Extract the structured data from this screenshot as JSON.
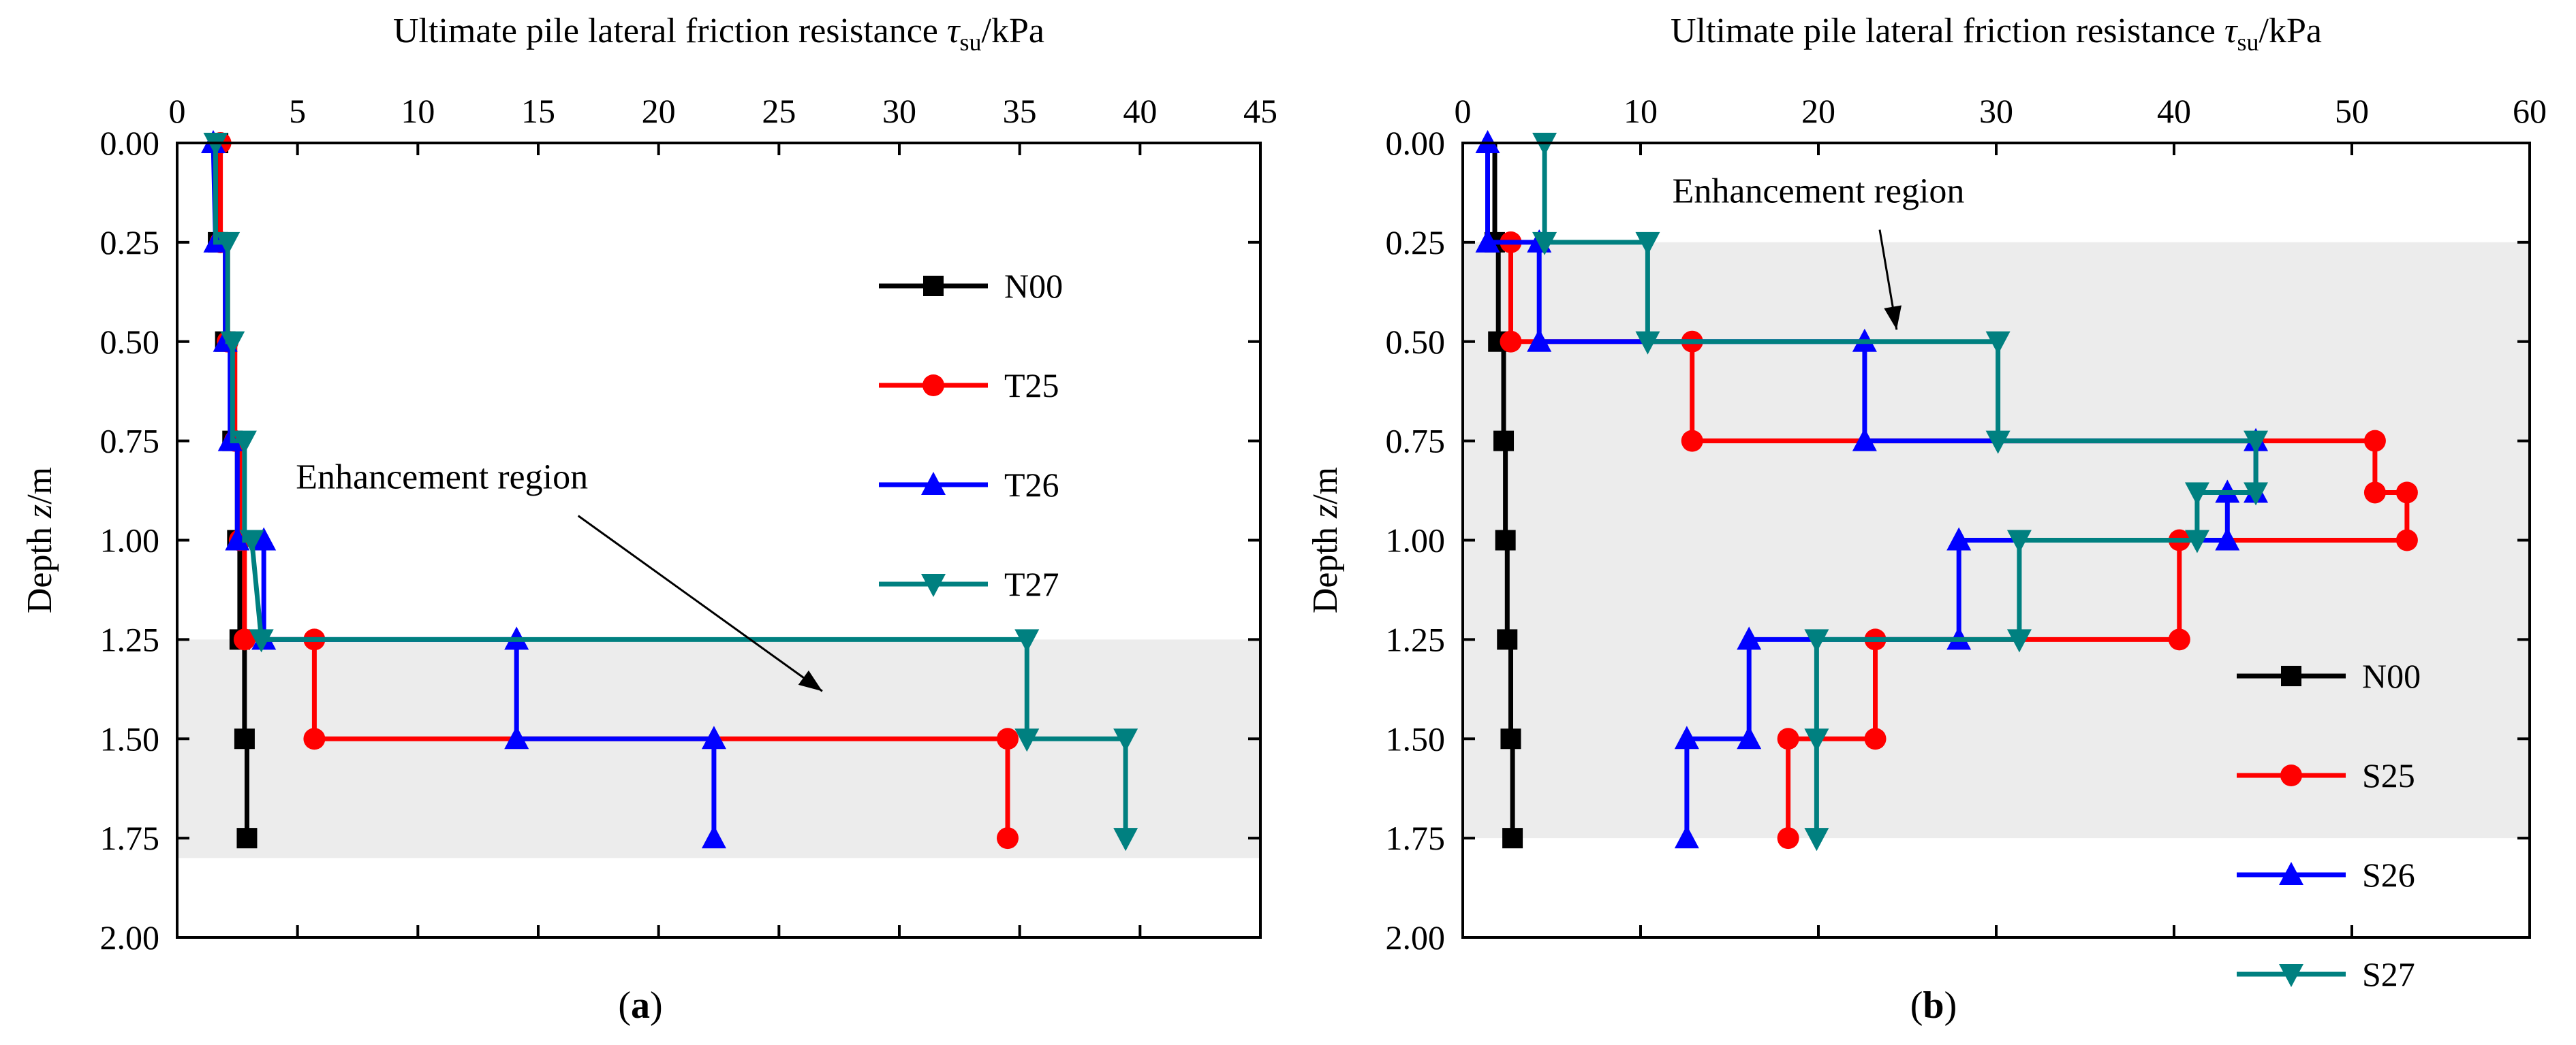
{
  "chart_data": [
    {
      "type": "line",
      "panel": "a",
      "caption": "a",
      "title": "",
      "xlabel": "Ultimate pile lateral friction resistance",
      "xlabel_symbol": "τ",
      "xlabel_sub": "su",
      "xlabel_unit": "/kPa",
      "ylabel": "Depth",
      "ylabel_symbol": "z",
      "ylabel_unit": "/m",
      "xlim": [
        0,
        45
      ],
      "ylim": [
        0,
        2.0
      ],
      "x_ticks": [
        0,
        5,
        10,
        15,
        20,
        25,
        30,
        35,
        40,
        45
      ],
      "y_ticks": [
        "0.00",
        "0.25",
        "0.50",
        "0.75",
        "1.00",
        "1.25",
        "1.50",
        "1.75",
        "2.00"
      ],
      "x_axis_position": "top",
      "y_inverted": true,
      "shaded_region": {
        "y_from": 1.25,
        "y_to": 1.8,
        "color": "#ececec"
      },
      "annotation": {
        "text": "Enhancement region",
        "text_at": [
          11,
          0.87
        ],
        "arrow_to": [
          26.8,
          1.38
        ]
      },
      "legend_placement": "upper-right",
      "series": [
        {
          "name": "N00",
          "color": "#000000",
          "marker": "square",
          "markers": [
            [
              1.7,
              0.0
            ],
            [
              1.7,
              0.25
            ],
            [
              2.0,
              0.5
            ],
            [
              2.3,
              0.75
            ],
            [
              2.5,
              1.0
            ],
            [
              2.6,
              1.25
            ],
            [
              2.8,
              1.5
            ],
            [
              2.9,
              1.75
            ]
          ],
          "path": [
            [
              1.7,
              0.0
            ],
            [
              1.7,
              0.25
            ],
            [
              2.0,
              0.25
            ],
            [
              2.0,
              0.5
            ],
            [
              2.3,
              0.5
            ],
            [
              2.3,
              0.75
            ],
            [
              2.5,
              0.75
            ],
            [
              2.5,
              1.0
            ],
            [
              2.6,
              1.0
            ],
            [
              2.6,
              1.25
            ],
            [
              2.8,
              1.25
            ],
            [
              2.8,
              1.5
            ],
            [
              2.9,
              1.5
            ],
            [
              2.9,
              1.75
            ]
          ]
        },
        {
          "name": "T25",
          "color": "#ff0000",
          "marker": "circle",
          "markers": [
            [
              1.8,
              0.0
            ],
            [
              1.8,
              0.25
            ],
            [
              2.1,
              0.5
            ],
            [
              2.4,
              0.75
            ],
            [
              2.6,
              1.0
            ],
            [
              2.8,
              1.25
            ],
            [
              5.7,
              1.25
            ],
            [
              5.7,
              1.5
            ],
            [
              34.5,
              1.5
            ],
            [
              34.5,
              1.75
            ]
          ],
          "path": [
            [
              1.8,
              0.0
            ],
            [
              1.8,
              0.25
            ],
            [
              2.1,
              0.25
            ],
            [
              2.1,
              0.5
            ],
            [
              2.4,
              0.5
            ],
            [
              2.4,
              0.75
            ],
            [
              2.6,
              0.75
            ],
            [
              2.6,
              1.0
            ],
            [
              2.8,
              1.0
            ],
            [
              2.8,
              1.25
            ],
            [
              5.7,
              1.25
            ],
            [
              5.7,
              1.5
            ],
            [
              34.5,
              1.5
            ],
            [
              34.5,
              1.75
            ]
          ]
        },
        {
          "name": "T26",
          "color": "#0000ff",
          "marker": "triangle-up",
          "markers": [
            [
              1.5,
              0.0
            ],
            [
              1.6,
              0.25
            ],
            [
              2.0,
              0.5
            ],
            [
              2.2,
              0.75
            ],
            [
              2.5,
              1.0
            ],
            [
              3.6,
              1.0
            ],
            [
              3.6,
              1.25
            ],
            [
              14.1,
              1.25
            ],
            [
              14.1,
              1.5
            ],
            [
              22.3,
              1.5
            ],
            [
              22.3,
              1.75
            ]
          ],
          "path": [
            [
              1.5,
              0.0
            ],
            [
              1.6,
              0.25
            ],
            [
              2.0,
              0.25
            ],
            [
              2.0,
              0.5
            ],
            [
              2.2,
              0.5
            ],
            [
              2.2,
              0.75
            ],
            [
              2.5,
              0.75
            ],
            [
              2.5,
              1.0
            ],
            [
              3.6,
              1.0
            ],
            [
              3.6,
              1.25
            ],
            [
              14.1,
              1.25
            ],
            [
              14.1,
              1.5
            ],
            [
              22.3,
              1.5
            ],
            [
              22.3,
              1.75
            ]
          ]
        },
        {
          "name": "T27",
          "color": "#008080",
          "marker": "triangle-down",
          "markers": [
            [
              1.6,
              0.0
            ],
            [
              2.1,
              0.25
            ],
            [
              2.3,
              0.5
            ],
            [
              2.8,
              0.75
            ],
            [
              3.1,
              1.0
            ],
            [
              3.5,
              1.25
            ],
            [
              35.3,
              1.25
            ],
            [
              35.3,
              1.5
            ],
            [
              39.4,
              1.5
            ],
            [
              39.4,
              1.75
            ]
          ],
          "path": [
            [
              1.6,
              0.0
            ],
            [
              1.6,
              0.25
            ],
            [
              2.1,
              0.25
            ],
            [
              2.1,
              0.5
            ],
            [
              2.3,
              0.5
            ],
            [
              2.3,
              0.75
            ],
            [
              2.8,
              0.75
            ],
            [
              2.8,
              1.0
            ],
            [
              3.1,
              1.0
            ],
            [
              3.5,
              1.25
            ],
            [
              35.3,
              1.25
            ],
            [
              35.3,
              1.5
            ],
            [
              39.4,
              1.5
            ],
            [
              39.4,
              1.75
            ]
          ]
        }
      ]
    },
    {
      "type": "line",
      "panel": "b",
      "caption": "b",
      "title": "",
      "xlabel": "Ultimate pile lateral friction resistance",
      "xlabel_symbol": "τ",
      "xlabel_sub": "su",
      "xlabel_unit": "/kPa",
      "ylabel": "Depth",
      "ylabel_symbol": "z",
      "ylabel_unit": "/m",
      "xlim": [
        0,
        60
      ],
      "ylim": [
        0,
        2.0
      ],
      "x_ticks": [
        0,
        10,
        20,
        30,
        40,
        50,
        60
      ],
      "y_ticks": [
        "0.00",
        "0.25",
        "0.50",
        "0.75",
        "1.00",
        "1.25",
        "1.50",
        "1.75",
        "2.00"
      ],
      "x_axis_position": "top",
      "y_inverted": true,
      "shaded_region": {
        "y_from": 0.25,
        "y_to": 1.75,
        "color": "#ececec"
      },
      "annotation": {
        "text": "Enhancement region",
        "text_at": [
          20,
          0.15
        ],
        "arrow_to": [
          24.4,
          0.47
        ]
      },
      "legend_placement": "lower-right",
      "series": [
        {
          "name": "N00",
          "color": "#000000",
          "marker": "square",
          "markers": [
            [
              1.8,
              0.25
            ],
            [
              2.0,
              0.5
            ],
            [
              2.3,
              0.75
            ],
            [
              2.4,
              1.0
            ],
            [
              2.5,
              1.25
            ],
            [
              2.7,
              1.5
            ],
            [
              2.8,
              1.75
            ]
          ],
          "path": [
            [
              1.8,
              0.0
            ],
            [
              1.8,
              0.25
            ],
            [
              2.0,
              0.25
            ],
            [
              2.0,
              0.5
            ],
            [
              2.3,
              0.5
            ],
            [
              2.3,
              0.75
            ],
            [
              2.4,
              0.75
            ],
            [
              2.4,
              1.0
            ],
            [
              2.5,
              1.0
            ],
            [
              2.5,
              1.25
            ],
            [
              2.7,
              1.25
            ],
            [
              2.7,
              1.5
            ],
            [
              2.8,
              1.5
            ],
            [
              2.8,
              1.75
            ]
          ]
        },
        {
          "name": "S25",
          "color": "#ff0000",
          "marker": "circle",
          "markers": [
            [
              2.7,
              0.25
            ],
            [
              2.7,
              0.5
            ],
            [
              12.9,
              0.5
            ],
            [
              12.9,
              0.75
            ],
            [
              51.3,
              0.75
            ],
            [
              51.3,
              0.88
            ],
            [
              53.1,
              0.88
            ],
            [
              53.1,
              1.0
            ],
            [
              40.3,
              1.0
            ],
            [
              40.3,
              1.25
            ],
            [
              23.2,
              1.25
            ],
            [
              23.2,
              1.5
            ],
            [
              18.3,
              1.5
            ],
            [
              18.3,
              1.75
            ]
          ],
          "path": [
            [
              2.7,
              0.25
            ],
            [
              2.7,
              0.5
            ],
            [
              12.9,
              0.5
            ],
            [
              12.9,
              0.75
            ],
            [
              51.3,
              0.75
            ],
            [
              51.3,
              0.88
            ],
            [
              53.1,
              0.88
            ],
            [
              53.1,
              1.0
            ],
            [
              40.3,
              1.0
            ],
            [
              40.3,
              1.25
            ],
            [
              23.2,
              1.25
            ],
            [
              23.2,
              1.5
            ],
            [
              18.3,
              1.5
            ],
            [
              18.3,
              1.75
            ]
          ]
        },
        {
          "name": "S26",
          "color": "#0000ff",
          "marker": "triangle-up",
          "markers": [
            [
              1.4,
              0.0
            ],
            [
              1.4,
              0.25
            ],
            [
              4.3,
              0.25
            ],
            [
              4.3,
              0.5
            ],
            [
              22.6,
              0.5
            ],
            [
              22.6,
              0.75
            ],
            [
              44.6,
              0.75
            ],
            [
              44.6,
              0.88
            ],
            [
              43.0,
              0.88
            ],
            [
              43.0,
              1.0
            ],
            [
              27.9,
              1.0
            ],
            [
              27.9,
              1.25
            ],
            [
              16.1,
              1.25
            ],
            [
              16.1,
              1.5
            ],
            [
              12.6,
              1.5
            ],
            [
              12.6,
              1.75
            ]
          ],
          "path": [
            [
              1.4,
              0.0
            ],
            [
              1.4,
              0.25
            ],
            [
              4.3,
              0.25
            ],
            [
              4.3,
              0.5
            ],
            [
              22.6,
              0.5
            ],
            [
              22.6,
              0.75
            ],
            [
              44.6,
              0.75
            ],
            [
              44.6,
              0.88
            ],
            [
              43.0,
              0.88
            ],
            [
              43.0,
              1.0
            ],
            [
              27.9,
              1.0
            ],
            [
              27.9,
              1.25
            ],
            [
              16.1,
              1.25
            ],
            [
              16.1,
              1.5
            ],
            [
              12.6,
              1.5
            ],
            [
              12.6,
              1.75
            ]
          ]
        },
        {
          "name": "S27",
          "color": "#008080",
          "marker": "triangle-down",
          "markers": [
            [
              4.6,
              0.0
            ],
            [
              4.6,
              0.25
            ],
            [
              10.4,
              0.25
            ],
            [
              10.4,
              0.5
            ],
            [
              30.1,
              0.5
            ],
            [
              30.1,
              0.75
            ],
            [
              44.6,
              0.75
            ],
            [
              44.6,
              0.88
            ],
            [
              41.3,
              0.88
            ],
            [
              41.3,
              1.0
            ],
            [
              31.3,
              1.0
            ],
            [
              31.3,
              1.25
            ],
            [
              19.9,
              1.25
            ],
            [
              19.9,
              1.5
            ],
            [
              19.9,
              1.75
            ]
          ],
          "path": [
            [
              4.6,
              0.0
            ],
            [
              4.6,
              0.25
            ],
            [
              10.4,
              0.25
            ],
            [
              10.4,
              0.5
            ],
            [
              30.1,
              0.5
            ],
            [
              30.1,
              0.75
            ],
            [
              44.6,
              0.75
            ],
            [
              44.6,
              0.88
            ],
            [
              41.3,
              0.88
            ],
            [
              41.3,
              1.0
            ],
            [
              31.3,
              1.0
            ],
            [
              31.3,
              1.25
            ],
            [
              19.9,
              1.25
            ],
            [
              19.9,
              1.5
            ],
            [
              19.9,
              1.75
            ]
          ]
        }
      ]
    }
  ]
}
